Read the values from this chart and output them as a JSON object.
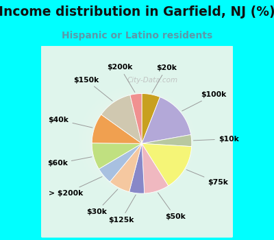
{
  "title": "Income distribution in Garfield, NJ (%)",
  "subtitle": "Hispanic or Latino residents",
  "bg_cyan": "#00FFFF",
  "bg_chart_outer": "#aaeedd",
  "bg_chart_inner": "#e8f8f0",
  "watermark": "City-Data.com",
  "title_fontsize": 13.5,
  "subtitle_fontsize": 10,
  "label_fontsize": 7.8,
  "slices": [
    {
      "label": "$20k",
      "value": 5.5,
      "color": "#c8a020"
    },
    {
      "label": "$100k",
      "value": 15.0,
      "color": "#b3a8d8"
    },
    {
      "label": "$10k",
      "value": 3.5,
      "color": "#b8c8a0"
    },
    {
      "label": "$75k",
      "value": 14.0,
      "color": "#f5f577"
    },
    {
      "label": "$50k",
      "value": 7.5,
      "color": "#f0b8c0"
    },
    {
      "label": "$125k",
      "value": 4.5,
      "color": "#8888c8"
    },
    {
      "label": "$30k",
      "value": 6.5,
      "color": "#f5c8a0"
    },
    {
      "label": "> $200k",
      "value": 5.0,
      "color": "#a8c0e0"
    },
    {
      "label": "$60k",
      "value": 8.0,
      "color": "#c0e080"
    },
    {
      "label": "$40k",
      "value": 9.0,
      "color": "#f0a050"
    },
    {
      "label": "$150k",
      "value": 10.5,
      "color": "#d0c8b0"
    },
    {
      "label": "$200k",
      "value": 3.5,
      "color": "#f09090"
    }
  ]
}
